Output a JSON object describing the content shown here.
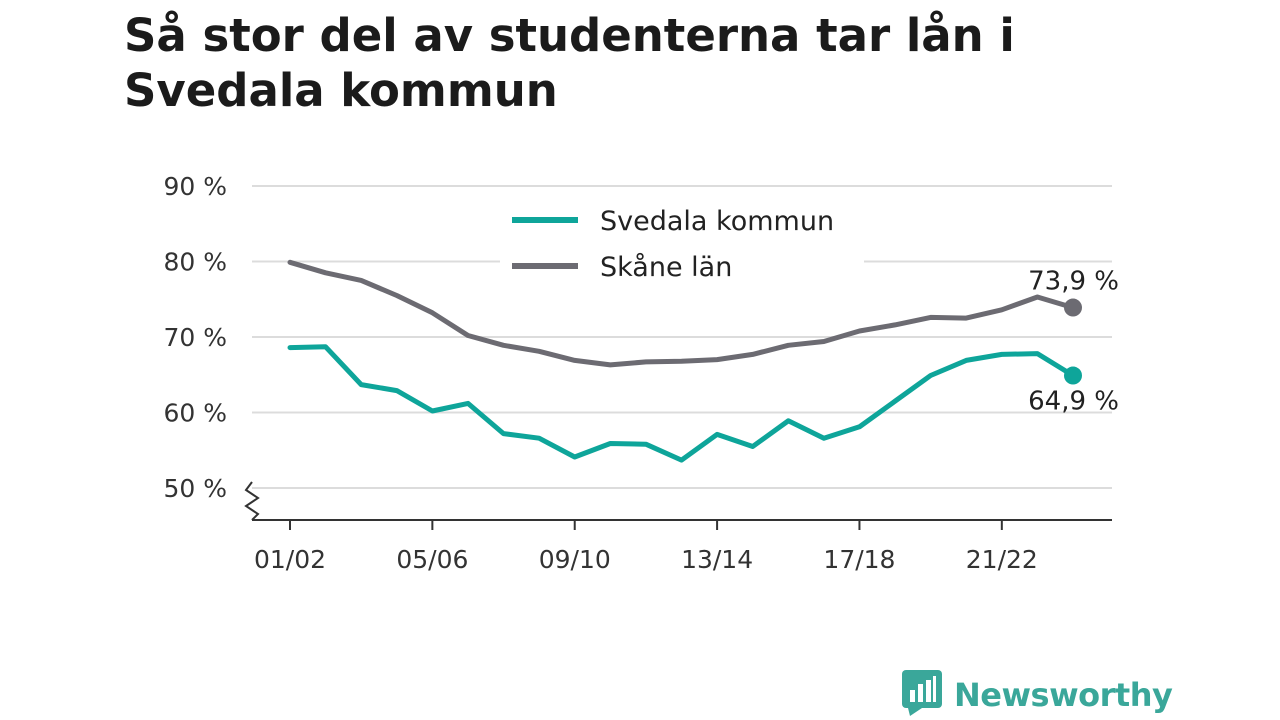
{
  "title": "Så stor del av studenterna tar lån i Svedala kommun",
  "colors": {
    "svedala": "#0ea59a",
    "skane": "#6c6b72",
    "grid": "#dcdcdc",
    "axis": "#333333",
    "brand": "#3aa79a"
  },
  "brand": {
    "name": "Newsworthy",
    "icon": "newsworthy-logo-icon"
  },
  "chart_data": {
    "type": "line",
    "x": [
      "01/02",
      "02/03",
      "03/04",
      "04/05",
      "05/06",
      "06/07",
      "07/08",
      "08/09",
      "09/10",
      "10/11",
      "11/12",
      "12/13",
      "13/14",
      "14/15",
      "15/16",
      "16/17",
      "17/18",
      "18/19",
      "19/20",
      "20/21",
      "21/22",
      "22/23",
      "23/24"
    ],
    "x_tick_labels": [
      "01/02",
      "05/06",
      "09/10",
      "13/14",
      "17/18",
      "21/22"
    ],
    "y_ticks": [
      50,
      60,
      70,
      80,
      90
    ],
    "y_tick_labels": [
      "50 %",
      "60 %",
      "70 %",
      "80 %",
      "90 %"
    ],
    "ylim": [
      50,
      90
    ],
    "y_axis_break": true,
    "grid": true,
    "legend_position": "top-center",
    "series": [
      {
        "name": "Svedala kommun",
        "color": "#0ea59a",
        "values": [
          68.6,
          68.7,
          63.7,
          62.9,
          60.2,
          61.2,
          57.2,
          56.6,
          54.1,
          55.9,
          55.8,
          53.7,
          57.1,
          55.5,
          58.9,
          56.6,
          58.1,
          61.5,
          64.9,
          66.9,
          67.7,
          67.8,
          64.9
        ],
        "end_label": "64,9 %"
      },
      {
        "name": "Skåne län",
        "color": "#6c6b72",
        "values": [
          79.9,
          78.5,
          77.5,
          75.5,
          73.2,
          70.2,
          68.9,
          68.1,
          66.9,
          66.3,
          66.7,
          66.8,
          67.0,
          67.7,
          68.9,
          69.4,
          70.8,
          71.6,
          72.6,
          72.5,
          73.6,
          75.3,
          73.9
        ],
        "end_label": "73,9 %"
      }
    ]
  }
}
